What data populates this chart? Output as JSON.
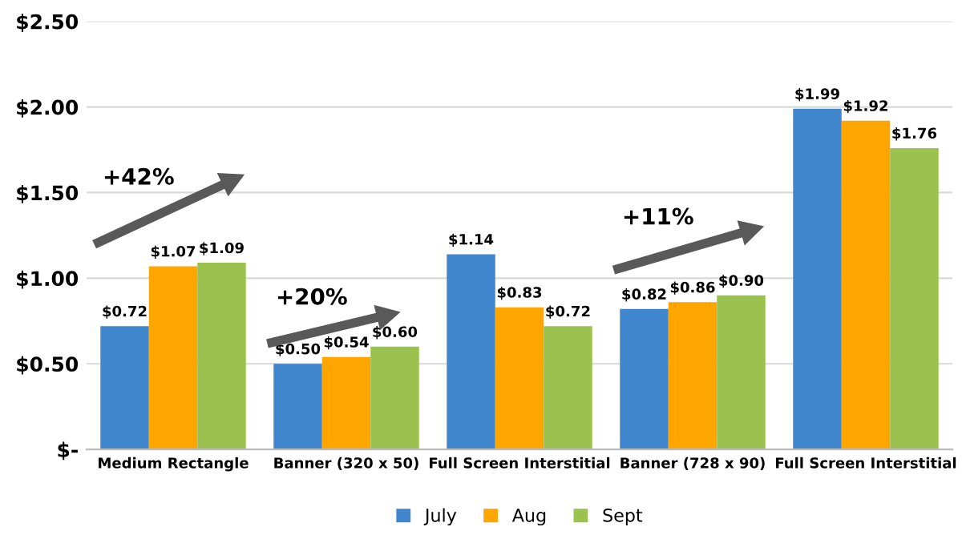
{
  "chart_data": {
    "type": "bar",
    "categories": [
      "Medium Rectangle",
      "Banner (320 x 50)",
      "Full Screen Interstitial",
      "Banner (728 x 90)",
      "Full Screen Interstitial"
    ],
    "series": [
      {
        "name": "July",
        "color": "#3f86cc",
        "values": [
          0.72,
          0.5,
          1.14,
          0.82,
          1.99
        ],
        "value_labels": [
          "$0.72",
          "$0.50",
          "$1.14",
          "$0.82",
          "$1.99"
        ]
      },
      {
        "name": "Aug",
        "color": "#ffa500",
        "values": [
          1.07,
          0.54,
          0.83,
          0.86,
          1.92
        ],
        "value_labels": [
          "$1.07",
          "$0.54",
          "$0.83",
          "$0.86",
          "$1.92"
        ]
      },
      {
        "name": "Sept",
        "color": "#9bc24f",
        "values": [
          1.09,
          0.6,
          0.72,
          0.9,
          1.76
        ],
        "value_labels": [
          "$1.09",
          "$0.60",
          "$0.72",
          "$0.90",
          "$1.76"
        ]
      }
    ],
    "ylim": [
      0,
      2.5
    ],
    "yticks": [
      {
        "value": 0,
        "label": "$-"
      },
      {
        "value": 0.5,
        "label": "$0.50"
      },
      {
        "value": 1.0,
        "label": "$1.00"
      },
      {
        "value": 1.5,
        "label": "$1.50"
      },
      {
        "value": 2.0,
        "label": "$2.00"
      },
      {
        "value": 2.5,
        "label": "$2.50"
      }
    ],
    "grid": "y",
    "legend": "bottom",
    "annotations": [
      "+42%",
      "+20%",
      "+11%"
    ]
  }
}
